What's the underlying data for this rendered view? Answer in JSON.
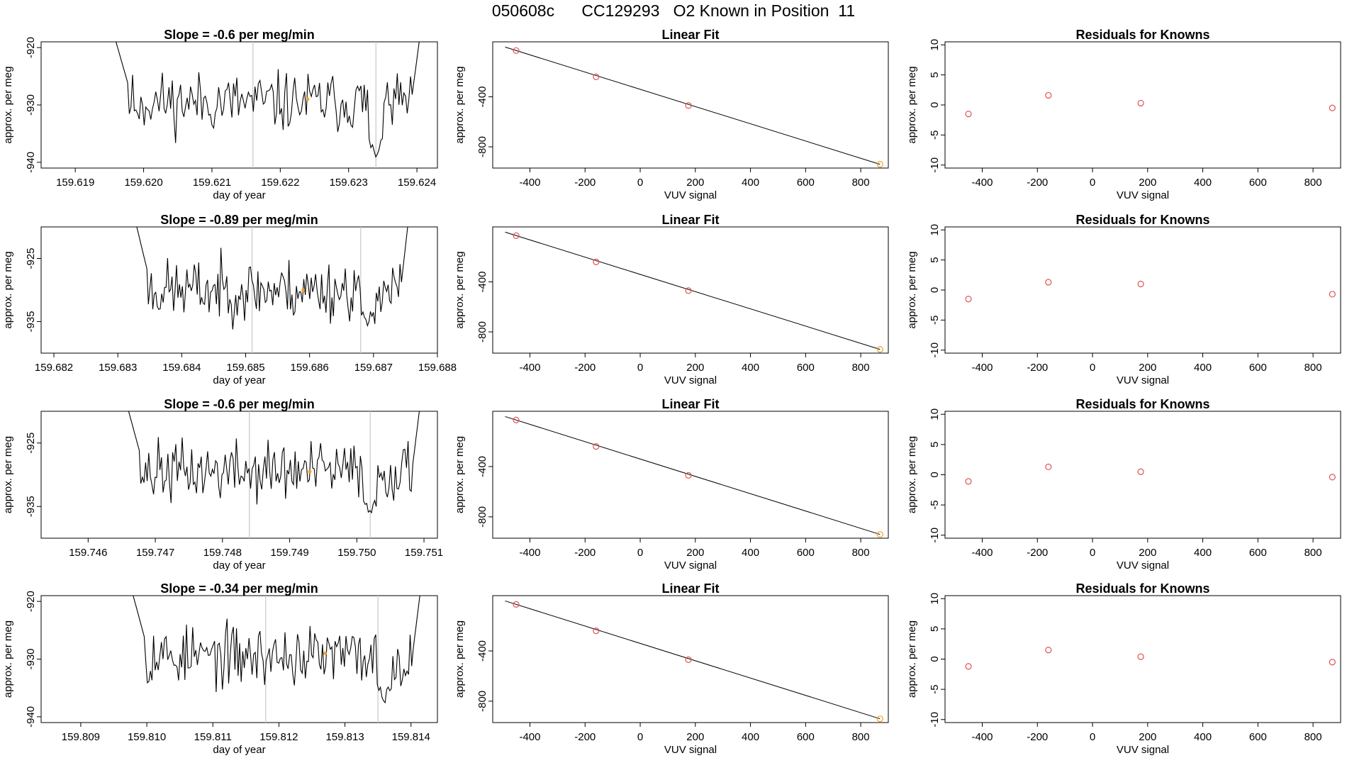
{
  "page": {
    "title": "050608c      CC129293   O2 Known in Position  11"
  },
  "style": {
    "trace_color": "#000000",
    "point_color": "#e05252",
    "highlight_color": "#f0a020",
    "vline_color": "#c8c8c8"
  },
  "chart_data": [
    {
      "type": "line",
      "row": 0,
      "panel": "timeseries",
      "title": "Slope =  -0.6  per meg/min",
      "xlabel": "day of year",
      "ylabel": "approx. per meg",
      "xlim": [
        159.6185,
        159.6243
      ],
      "ylim": [
        -941,
        -919
      ],
      "xticks": [
        159.619,
        159.62,
        159.621,
        159.622,
        159.623,
        159.624
      ],
      "xtick_labels": [
        "159.619",
        "159.620",
        "159.621",
        "159.622",
        "159.623",
        "159.624"
      ],
      "yticks": [
        -920,
        -930,
        -940
      ],
      "ytick_labels": [
        "-920",
        "-930",
        "-940"
      ],
      "vlines": [
        159.6216,
        159.6234
      ],
      "x_start": 159.6195,
      "x_end": 159.6241,
      "baseline": -929.5,
      "amplitude": 2.6,
      "seed": 11,
      "dip": [
        159.6234,
        -939
      ],
      "highlight_point": [
        159.6224,
        -929
      ]
    },
    {
      "type": "scatter",
      "row": 0,
      "panel": "fit",
      "title": "Linear Fit",
      "xlabel": "VUV signal",
      "ylabel": "approx. per meg",
      "xlim": [
        -535,
        900
      ],
      "ylim": [
        -970,
        40
      ],
      "xticks": [
        -400,
        -200,
        0,
        200,
        400,
        600,
        800
      ],
      "xtick_labels": [
        "-400",
        "-200",
        "0",
        "200",
        "400",
        "600",
        "800"
      ],
      "yticks": [
        -400,
        -800
      ],
      "ytick_labels": [
        "-400",
        "-800"
      ],
      "points": [
        [
          -450,
          -30
        ],
        [
          -160,
          -240
        ],
        [
          175,
          -470
        ],
        [
          870,
          -940
        ]
      ],
      "line": [
        [
          -490,
          -2
        ],
        [
          870,
          -940
        ]
      ]
    },
    {
      "type": "scatter",
      "row": 0,
      "panel": "residuals",
      "title": "Residuals for Knowns",
      "xlabel": "VUV signal",
      "ylabel": "approx. per meg",
      "xlim": [
        -535,
        900
      ],
      "ylim": [
        -10.5,
        10.5
      ],
      "xticks": [
        -400,
        -200,
        0,
        200,
        400,
        600,
        800
      ],
      "xtick_labels": [
        "-400",
        "-200",
        "0",
        "200",
        "400",
        "600",
        "800"
      ],
      "yticks": [
        10,
        5,
        0,
        -5,
        -10
      ],
      "ytick_labels": [
        "10",
        "5",
        "0",
        "-5",
        "-10"
      ],
      "points": [
        [
          -450,
          -1.5
        ],
        [
          -160,
          1.6
        ],
        [
          175,
          0.3
        ],
        [
          870,
          -0.5
        ]
      ]
    },
    {
      "type": "line",
      "row": 1,
      "panel": "timeseries",
      "title": "Slope =  -0.89  per meg/min",
      "xlabel": "day of year",
      "ylabel": "approx. per meg",
      "xlim": [
        159.6818,
        159.688
      ],
      "ylim": [
        -940,
        -920
      ],
      "xticks": [
        159.682,
        159.683,
        159.684,
        159.685,
        159.686,
        159.687,
        159.688
      ],
      "xtick_labels": [
        "159.682",
        "159.683",
        "159.684",
        "159.685",
        "159.686",
        "159.687",
        "159.688"
      ],
      "yticks": [
        -925,
        -935
      ],
      "ytick_labels": [
        "-925",
        "-935"
      ],
      "vlines": [
        159.6851,
        159.6868
      ],
      "x_start": 159.6832,
      "x_end": 159.6876,
      "baseline": -930,
      "amplitude": 2.4,
      "seed": 23,
      "dip": [
        159.6869,
        -935.5
      ],
      "highlight_point": [
        159.6859,
        -930
      ]
    },
    {
      "type": "scatter",
      "row": 1,
      "panel": "fit",
      "title": "Linear Fit",
      "xlabel": "VUV signal",
      "ylabel": "approx. per meg",
      "xlim": [
        -535,
        900
      ],
      "ylim": [
        -970,
        40
      ],
      "xticks": [
        -400,
        -200,
        0,
        200,
        400,
        600,
        800
      ],
      "xtick_labels": [
        "-400",
        "-200",
        "0",
        "200",
        "400",
        "600",
        "800"
      ],
      "yticks": [
        -400,
        -800
      ],
      "ytick_labels": [
        "-400",
        "-800"
      ],
      "points": [
        [
          -450,
          -30
        ],
        [
          -160,
          -240
        ],
        [
          175,
          -470
        ],
        [
          870,
          -940
        ]
      ],
      "line": [
        [
          -490,
          -2
        ],
        [
          870,
          -940
        ]
      ]
    },
    {
      "type": "scatter",
      "row": 1,
      "panel": "residuals",
      "title": "Residuals for Knowns",
      "xlabel": "VUV signal",
      "ylabel": "approx. per meg",
      "xlim": [
        -535,
        900
      ],
      "ylim": [
        -10.5,
        10.5
      ],
      "xticks": [
        -400,
        -200,
        0,
        200,
        400,
        600,
        800
      ],
      "xtick_labels": [
        "-400",
        "-200",
        "0",
        "200",
        "400",
        "600",
        "800"
      ],
      "yticks": [
        10,
        5,
        0,
        -5,
        -10
      ],
      "ytick_labels": [
        "10",
        "5",
        "0",
        "-5",
        "-10"
      ],
      "points": [
        [
          -450,
          -1.5
        ],
        [
          -160,
          1.3
        ],
        [
          175,
          1.0
        ],
        [
          870,
          -0.7
        ]
      ]
    },
    {
      "type": "line",
      "row": 2,
      "panel": "timeseries",
      "title": "Slope =  -0.6  per meg/min",
      "xlabel": "day of year",
      "ylabel": "approx. per meg",
      "xlim": [
        159.7453,
        159.7512
      ],
      "ylim": [
        -940,
        -920
      ],
      "xticks": [
        159.746,
        159.747,
        159.748,
        159.749,
        159.75,
        159.751
      ],
      "xtick_labels": [
        "159.746",
        "159.747",
        "159.748",
        "159.749",
        "159.750",
        "159.751"
      ],
      "yticks": [
        -925,
        -935
      ],
      "ytick_labels": [
        "-925",
        "-935"
      ],
      "vlines": [
        159.7484,
        159.7502
      ],
      "x_start": 159.7465,
      "x_end": 159.751,
      "baseline": -929.5,
      "amplitude": 2.4,
      "seed": 37,
      "dip": [
        159.7502,
        -936.5
      ],
      "highlight_point": [
        159.7493,
        -929.5
      ]
    },
    {
      "type": "scatter",
      "row": 2,
      "panel": "fit",
      "title": "Linear Fit",
      "xlabel": "VUV signal",
      "ylabel": "approx. per meg",
      "xlim": [
        -535,
        900
      ],
      "ylim": [
        -970,
        40
      ],
      "xticks": [
        -400,
        -200,
        0,
        200,
        400,
        600,
        800
      ],
      "xtick_labels": [
        "-400",
        "-200",
        "0",
        "200",
        "400",
        "600",
        "800"
      ],
      "yticks": [
        -400,
        -800
      ],
      "ytick_labels": [
        "-400",
        "-800"
      ],
      "points": [
        [
          -450,
          -30
        ],
        [
          -160,
          -240
        ],
        [
          175,
          -470
        ],
        [
          870,
          -940
        ]
      ],
      "line": [
        [
          -490,
          -2
        ],
        [
          870,
          -940
        ]
      ]
    },
    {
      "type": "scatter",
      "row": 2,
      "panel": "residuals",
      "title": "Residuals for Knowns",
      "xlabel": "VUV signal",
      "ylabel": "approx. per meg",
      "xlim": [
        -535,
        900
      ],
      "ylim": [
        -10.5,
        10.5
      ],
      "xticks": [
        -400,
        -200,
        0,
        200,
        400,
        600,
        800
      ],
      "xtick_labels": [
        "-400",
        "-200",
        "0",
        "200",
        "400",
        "600",
        "800"
      ],
      "yticks": [
        10,
        5,
        0,
        -5,
        -10
      ],
      "ytick_labels": [
        "10",
        "5",
        "0",
        "-5",
        "-10"
      ],
      "points": [
        [
          -450,
          -1.1
        ],
        [
          -160,
          1.3
        ],
        [
          175,
          0.5
        ],
        [
          870,
          -0.4
        ]
      ]
    },
    {
      "type": "line",
      "row": 3,
      "panel": "timeseries",
      "title": "Slope =  -0.34  per meg/min",
      "xlabel": "day of year",
      "ylabel": "approx. per meg",
      "xlim": [
        159.8084,
        159.8144
      ],
      "ylim": [
        -941,
        -919
      ],
      "xticks": [
        159.809,
        159.81,
        159.811,
        159.812,
        159.813,
        159.814
      ],
      "xtick_labels": [
        "159.809",
        "159.810",
        "159.811",
        "159.812",
        "159.813",
        "159.814"
      ],
      "yticks": [
        -920,
        -930,
        -940
      ],
      "ytick_labels": [
        "-920",
        "-930",
        "-940"
      ],
      "vlines": [
        159.8118,
        159.8135
      ],
      "x_start": 159.8097,
      "x_end": 159.8142,
      "baseline": -929.5,
      "amplitude": 2.6,
      "seed": 53,
      "dip": [
        159.8136,
        -937
      ],
      "highlight_point": [
        159.8127,
        -929
      ]
    },
    {
      "type": "scatter",
      "row": 3,
      "panel": "fit",
      "title": "Linear Fit",
      "xlabel": "VUV signal",
      "ylabel": "approx. per meg",
      "xlim": [
        -535,
        900
      ],
      "ylim": [
        -970,
        40
      ],
      "xticks": [
        -400,
        -200,
        0,
        200,
        400,
        600,
        800
      ],
      "xtick_labels": [
        "-400",
        "-200",
        "0",
        "200",
        "400",
        "600",
        "800"
      ],
      "yticks": [
        -400,
        -800
      ],
      "ytick_labels": [
        "-400",
        "-800"
      ],
      "points": [
        [
          -450,
          -30
        ],
        [
          -160,
          -240
        ],
        [
          175,
          -470
        ],
        [
          870,
          -940
        ]
      ],
      "line": [
        [
          -490,
          -2
        ],
        [
          870,
          -940
        ]
      ]
    },
    {
      "type": "scatter",
      "row": 3,
      "panel": "residuals",
      "title": "Residuals for Knowns",
      "xlabel": "VUV signal",
      "ylabel": "approx. per meg",
      "xlim": [
        -535,
        900
      ],
      "ylim": [
        -10.5,
        10.5
      ],
      "xticks": [
        -400,
        -200,
        0,
        200,
        400,
        600,
        800
      ],
      "xtick_labels": [
        "-400",
        "-200",
        "0",
        "200",
        "400",
        "600",
        "800"
      ],
      "yticks": [
        10,
        5,
        0,
        -5,
        -10
      ],
      "ytick_labels": [
        "10",
        "5",
        "0",
        "-5",
        "-10"
      ],
      "points": [
        [
          -450,
          -1.2
        ],
        [
          -160,
          1.5
        ],
        [
          175,
          0.4
        ],
        [
          870,
          -0.5
        ]
      ]
    }
  ]
}
